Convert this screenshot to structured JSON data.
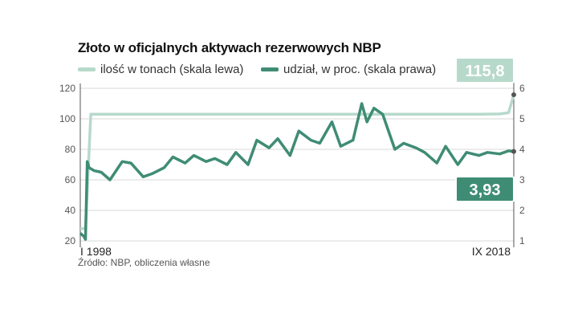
{
  "chart_data": {
    "type": "line",
    "title": "Złoto w oficjalnych aktywach rezerwowych NBP",
    "source": "Źródło: NBP, obliczenia własne",
    "x_start_label": "I 1998",
    "x_end_label": "IX 2018",
    "left_axis": {
      "range": [
        20,
        120
      ],
      "ticks": [
        "20",
        "40",
        "60",
        "80",
        "100",
        "120"
      ]
    },
    "right_axis": {
      "range": [
        1,
        6
      ],
      "ticks": [
        "1",
        "2",
        "3",
        "4",
        "5",
        "6"
      ]
    },
    "grid": "horizontal",
    "series": [
      {
        "name": "ilość w tonach (skala lewa)",
        "axis": "left",
        "color": "#b7d9cb",
        "x": [
          "1998-01",
          "1998-04",
          "1998-07",
          "1999-01",
          "2000-01",
          "2001-01",
          "2002-01",
          "2003-01",
          "2004-01",
          "2005-01",
          "2006-01",
          "2007-01",
          "2008-01",
          "2009-01",
          "2010-01",
          "2011-01",
          "2012-01",
          "2013-01",
          "2014-01",
          "2015-01",
          "2016-01",
          "2017-01",
          "2018-01",
          "2018-06",
          "2018-09"
        ],
        "values": [
          28,
          28,
          103,
          103,
          103,
          103,
          103,
          103,
          103,
          103,
          103,
          103,
          103,
          103,
          103,
          103,
          103,
          103,
          103,
          103,
          103,
          103,
          103.2,
          104,
          115.8
        ]
      },
      {
        "name": "udział, w proc. (skala prawa)",
        "axis": "right",
        "color": "#3f8c75",
        "x": [
          "1998-01",
          "1998-03",
          "1998-04",
          "1998-05",
          "1998-06",
          "1998-09",
          "1999-01",
          "1999-06",
          "2000-01",
          "2000-06",
          "2001-01",
          "2001-06",
          "2002-01",
          "2002-06",
          "2003-01",
          "2003-06",
          "2004-01",
          "2004-06",
          "2005-01",
          "2005-06",
          "2006-01",
          "2006-06",
          "2007-01",
          "2007-06",
          "2008-01",
          "2008-06",
          "2009-01",
          "2009-06",
          "2010-01",
          "2010-06",
          "2011-01",
          "2011-06",
          "2011-09",
          "2012-01",
          "2012-06",
          "2013-01",
          "2013-06",
          "2014-01",
          "2014-06",
          "2015-01",
          "2015-06",
          "2016-01",
          "2016-06",
          "2017-01",
          "2017-06",
          "2018-01",
          "2018-06",
          "2018-09"
        ],
        "values": [
          1.25,
          1.15,
          1.05,
          3.6,
          3.4,
          3.3,
          3.25,
          3.0,
          3.6,
          3.55,
          3.1,
          3.2,
          3.4,
          3.75,
          3.55,
          3.8,
          3.6,
          3.7,
          3.5,
          3.9,
          3.5,
          4.3,
          4.05,
          4.35,
          3.8,
          4.6,
          4.3,
          4.2,
          4.9,
          4.1,
          4.3,
          5.5,
          4.9,
          5.35,
          5.15,
          4.0,
          4.2,
          4.05,
          3.9,
          3.55,
          4.1,
          3.5,
          3.9,
          3.8,
          3.9,
          3.85,
          3.95,
          3.93
        ]
      }
    ],
    "callouts": [
      {
        "series": "ilość w tonach (skala lewa)",
        "value_label": "115,8",
        "color": "#b7d9cb"
      },
      {
        "series": "udział, w proc. (skala prawa)",
        "value_label": "3,93",
        "color": "#3f8c75"
      }
    ]
  }
}
